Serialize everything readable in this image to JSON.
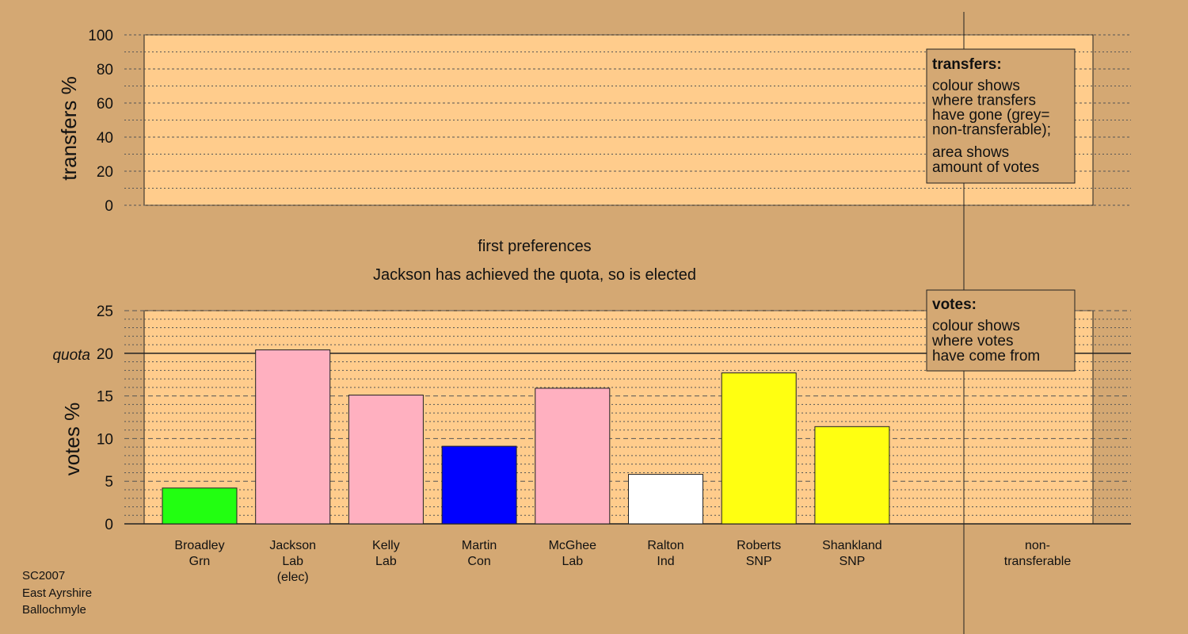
{
  "chart_data": [
    {
      "type": "bar",
      "ylabel": "transfers %",
      "ylim": [
        0,
        100
      ],
      "yticks": [
        0,
        20,
        40,
        60,
        80,
        100
      ],
      "values": [],
      "legend": {
        "title": "transfers:",
        "lines": [
          "colour shows",
          "where transfers",
          "have gone (grey=",
          "non-transferable);"
        ],
        "lines2": [
          "area shows",
          "amount of votes"
        ]
      }
    },
    {
      "type": "bar",
      "ylabel": "votes %",
      "ylim": [
        0,
        25
      ],
      "yticks": [
        0,
        5,
        10,
        15,
        20,
        25
      ],
      "quota": 20,
      "quota_label": "quota",
      "categories": [
        {
          "name": "Broadley",
          "party": "Grn",
          "extra": "",
          "value": 4.2,
          "color": "#22ff11"
        },
        {
          "name": "Jackson",
          "party": "Lab",
          "extra": "(elec)",
          "value": 20.4,
          "color": "#ffb0c0"
        },
        {
          "name": "Kelly",
          "party": "Lab",
          "extra": "",
          "value": 15.1,
          "color": "#ffb0c0"
        },
        {
          "name": "Martin",
          "party": "Con",
          "extra": "",
          "value": 9.1,
          "color": "#0000ff"
        },
        {
          "name": "McGhee",
          "party": "Lab",
          "extra": "",
          "value": 15.9,
          "color": "#ffb0c0"
        },
        {
          "name": "Ralton",
          "party": "Ind",
          "extra": "",
          "value": 5.8,
          "color": "#ffffff"
        },
        {
          "name": "Roberts",
          "party": "SNP",
          "extra": "",
          "value": 17.7,
          "color": "#ffff11"
        },
        {
          "name": "Shankland",
          "party": "SNP",
          "extra": "",
          "value": 11.4,
          "color": "#ffff11"
        }
      ],
      "nontransferable_label": [
        "non-",
        "transferable"
      ],
      "legend": {
        "title": "votes:",
        "lines": [
          "colour shows",
          "where votes",
          "have come from"
        ]
      }
    }
  ],
  "stage_title": "first preferences",
  "stage_subtitle": "Jackson has achieved the quota, so is elected",
  "footer": [
    "SC2007",
    "East Ayrshire",
    "Ballochmyle"
  ]
}
